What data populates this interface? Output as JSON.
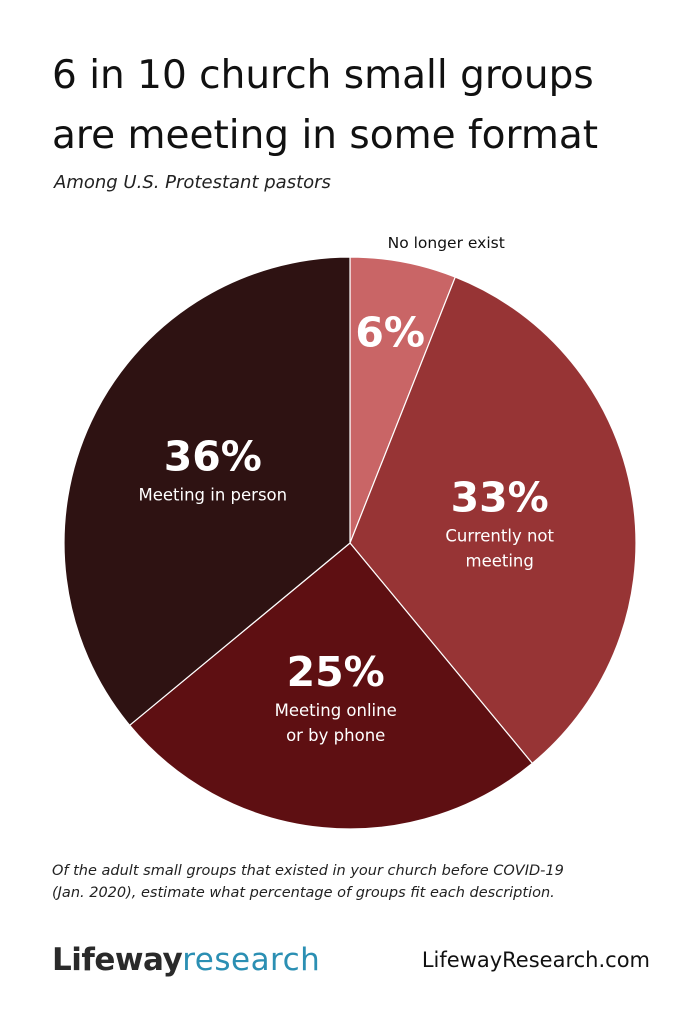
{
  "title_lines": [
    "6 in 10 church small groups",
    "are meeting in some format"
  ],
  "subtitle": "Among U.S. Protestant pastors",
  "chart_data": {
    "type": "pie",
    "title": "6 in 10 church small groups are meeting in some format",
    "subtitle": "Among U.S. Protestant pastors",
    "slices": [
      {
        "label": "No longer exist",
        "value": 6,
        "display": "6%",
        "color": "#c96566"
      },
      {
        "label": "Currently not meeting",
        "label_lines": [
          "Currently not",
          "meeting"
        ],
        "value": 33,
        "display": "33%",
        "color": "#973435"
      },
      {
        "label": "Meeting online or by phone",
        "label_lines": [
          "Meeting online",
          "or by phone"
        ],
        "value": 25,
        "display": "25%",
        "color": "#5e0f12"
      },
      {
        "label": "Meeting in person",
        "label_lines": [
          "Meeting in person"
        ],
        "value": 36,
        "display": "36%",
        "color": "#2e1212"
      }
    ],
    "start_angle": "12 o'clock",
    "direction": "clockwise",
    "legend": "none"
  },
  "footnote_lines": [
    "Of the adult small groups that existed in your church before COVID-19",
    "(Jan. 2020), estimate what percentage of groups fit each description."
  ],
  "brand": {
    "part1": "Lifeway",
    "part2": "research"
  },
  "website": "LifewayResearch.com"
}
